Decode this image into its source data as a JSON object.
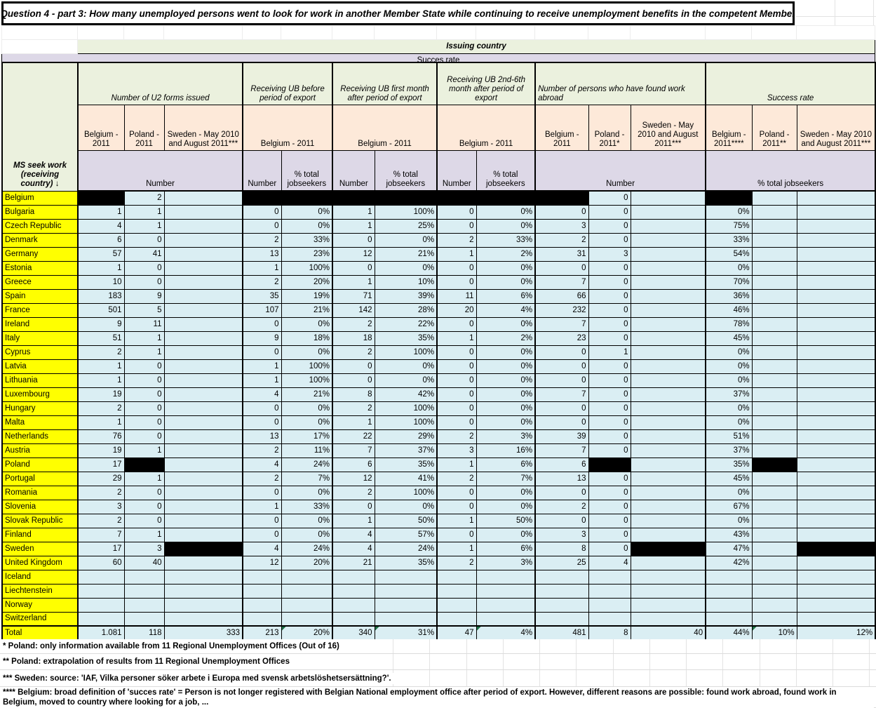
{
  "title": "Question 4 - part 3: How many unemployed persons went to look for work in another Member State while continuing to receive unemployment benefits in the competent Member",
  "top_banner": {
    "issuing_country": "Issuing country",
    "succes_rate": "Succes rate"
  },
  "table": {
    "corner_label": "MS seek work (receiving country) ↓",
    "group_headers": [
      "Number of U2 forms issued",
      "Receiving UB before period of export",
      "Receiving UB first month after period of export",
      "Receiving UB 2nd-6th month after period of export",
      "Number of persons who have found work abroad",
      "Success rate"
    ],
    "col_headers": {
      "u2_belgium": "Belgium - 2011",
      "u2_poland": "Poland - 2011",
      "u2_sweden": "Sweden - May 2010 and August 2011***",
      "ub_before_belgium": "Belgium  - 2011",
      "ub_first_belgium": "Belgium  - 2011",
      "ub_2nd6th_belgium": "Belgium  - 2011",
      "fw_belgium": "Belgium - 2011",
      "fw_poland": "Poland - 2011*",
      "fw_sweden": "Sweden - May 2010 and August 2011***",
      "sr_belgium": "Belgium - 2011****",
      "sr_poland": "Poland - 2011**",
      "sr_sweden": "Sweden - May 2010 and August 2011***"
    },
    "measure_headers": {
      "u2": "Number",
      "ub_before_n": "Number",
      "ub_before_pct": "% total jobseekers",
      "ub_first_n": "Number",
      "ub_first_pct": "% total jobseekers",
      "ub_2nd6th_n": "Number",
      "ub_2nd6th_pct": "% total jobseekers",
      "fw": "Number",
      "sr": "% total jobseekers"
    },
    "redacted_marker": "█",
    "rows": [
      {
        "country": "Belgium",
        "cells": [
          "█",
          "2",
          "",
          "█",
          "█",
          "█",
          "█",
          "█",
          "█",
          "█",
          "0",
          "",
          "█",
          "",
          ""
        ]
      },
      {
        "country": "Bulgaria",
        "cells": [
          "1",
          "1",
          "",
          "0",
          "0%",
          "1",
          "100%",
          "0",
          "0%",
          "0",
          "0",
          "",
          "0%",
          "",
          ""
        ]
      },
      {
        "country": "Czech Republic",
        "cells": [
          "4",
          "1",
          "",
          "0",
          "0%",
          "1",
          "25%",
          "0",
          "0%",
          "3",
          "0",
          "",
          "75%",
          "",
          ""
        ]
      },
      {
        "country": "Denmark",
        "cells": [
          "6",
          "0",
          "",
          "2",
          "33%",
          "0",
          "0%",
          "2",
          "33%",
          "2",
          "0",
          "",
          "33%",
          "",
          ""
        ]
      },
      {
        "country": "Germany",
        "cells": [
          "57",
          "41",
          "",
          "13",
          "23%",
          "12",
          "21%",
          "1",
          "2%",
          "31",
          "3",
          "",
          "54%",
          "",
          ""
        ]
      },
      {
        "country": "Estonia",
        "cells": [
          "1",
          "0",
          "",
          "1",
          "100%",
          "0",
          "0%",
          "0",
          "0%",
          "0",
          "0",
          "",
          "0%",
          "",
          ""
        ]
      },
      {
        "country": "Greece",
        "cells": [
          "10",
          "0",
          "",
          "2",
          "20%",
          "1",
          "10%",
          "0",
          "0%",
          "7",
          "0",
          "",
          "70%",
          "",
          ""
        ]
      },
      {
        "country": "Spain",
        "cells": [
          "183",
          "9",
          "",
          "35",
          "19%",
          "71",
          "39%",
          "11",
          "6%",
          "66",
          "0",
          "",
          "36%",
          "",
          ""
        ]
      },
      {
        "country": "France",
        "cells": [
          "501",
          "5",
          "",
          "107",
          "21%",
          "142",
          "28%",
          "20",
          "4%",
          "232",
          "0",
          "",
          "46%",
          "",
          ""
        ]
      },
      {
        "country": "Ireland",
        "cells": [
          "9",
          "11",
          "",
          "0",
          "0%",
          "2",
          "22%",
          "0",
          "0%",
          "7",
          "0",
          "",
          "78%",
          "",
          ""
        ]
      },
      {
        "country": "Italy",
        "cells": [
          "51",
          "1",
          "",
          "9",
          "18%",
          "18",
          "35%",
          "1",
          "2%",
          "23",
          "0",
          "",
          "45%",
          "",
          ""
        ]
      },
      {
        "country": "Cyprus",
        "cells": [
          "2",
          "1",
          "",
          "0",
          "0%",
          "2",
          "100%",
          "0",
          "0%",
          "0",
          "1",
          "",
          "0%",
          "",
          ""
        ]
      },
      {
        "country": "Latvia",
        "cells": [
          "1",
          "0",
          "",
          "1",
          "100%",
          "0",
          "0%",
          "0",
          "0%",
          "0",
          "0",
          "",
          "0%",
          "",
          ""
        ]
      },
      {
        "country": "Lithuania",
        "cells": [
          "1",
          "0",
          "",
          "1",
          "100%",
          "0",
          "0%",
          "0",
          "0%",
          "0",
          "0",
          "",
          "0%",
          "",
          ""
        ]
      },
      {
        "country": "Luxembourg",
        "cells": [
          "19",
          "0",
          "",
          "4",
          "21%",
          "8",
          "42%",
          "0",
          "0%",
          "7",
          "0",
          "",
          "37%",
          "",
          ""
        ]
      },
      {
        "country": "Hungary",
        "cells": [
          "2",
          "0",
          "",
          "0",
          "0%",
          "2",
          "100%",
          "0",
          "0%",
          "0",
          "0",
          "",
          "0%",
          "",
          ""
        ]
      },
      {
        "country": "Malta",
        "cells": [
          "1",
          "0",
          "",
          "0",
          "0%",
          "1",
          "100%",
          "0",
          "0%",
          "0",
          "0",
          "",
          "0%",
          "",
          ""
        ]
      },
      {
        "country": "Netherlands",
        "cells": [
          "76",
          "0",
          "",
          "13",
          "17%",
          "22",
          "29%",
          "2",
          "3%",
          "39",
          "0",
          "",
          "51%",
          "",
          ""
        ]
      },
      {
        "country": "Austria",
        "cells": [
          "19",
          "1",
          "",
          "2",
          "11%",
          "7",
          "37%",
          "3",
          "16%",
          "7",
          "0",
          "",
          "37%",
          "",
          ""
        ]
      },
      {
        "country": "Poland",
        "cells": [
          "17",
          "█",
          "",
          "4",
          "24%",
          "6",
          "35%",
          "1",
          "6%",
          "6",
          "█",
          "",
          "35%",
          "█",
          ""
        ]
      },
      {
        "country": "Portugal",
        "cells": [
          "29",
          "1",
          "",
          "2",
          "7%",
          "12",
          "41%",
          "2",
          "7%",
          "13",
          "0",
          "",
          "45%",
          "",
          ""
        ]
      },
      {
        "country": "Romania",
        "cells": [
          "2",
          "0",
          "",
          "0",
          "0%",
          "2",
          "100%",
          "0",
          "0%",
          "0",
          "0",
          "",
          "0%",
          "",
          ""
        ]
      },
      {
        "country": "Slovenia",
        "cells": [
          "3",
          "0",
          "",
          "1",
          "33%",
          "0",
          "0%",
          "0",
          "0%",
          "2",
          "0",
          "",
          "67%",
          "",
          ""
        ]
      },
      {
        "country": "Slovak Republic",
        "cells": [
          "2",
          "0",
          "",
          "0",
          "0%",
          "1",
          "50%",
          "1",
          "50%",
          "0",
          "0",
          "",
          "0%",
          "",
          ""
        ]
      },
      {
        "country": "Finland",
        "cells": [
          "7",
          "1",
          "",
          "0",
          "0%",
          "4",
          "57%",
          "0",
          "0%",
          "3",
          "0",
          "",
          "43%",
          "",
          ""
        ]
      },
      {
        "country": "Sweden",
        "cells": [
          "17",
          "3",
          "█",
          "4",
          "24%",
          "4",
          "24%",
          "1",
          "6%",
          "8",
          "0",
          "█",
          "47%",
          "",
          "█"
        ]
      },
      {
        "country": "United Kingdom",
        "cells": [
          "60",
          "40",
          "",
          "12",
          "20%",
          "21",
          "35%",
          "2",
          "3%",
          "25",
          "4",
          "",
          "42%",
          "",
          ""
        ]
      },
      {
        "country": "Iceland",
        "cells": [
          "",
          "",
          "",
          "",
          "",
          "",
          "",
          "",
          "",
          "",
          "",
          "",
          "",
          "",
          ""
        ]
      },
      {
        "country": "Liechtenstein",
        "cells": [
          "",
          "",
          "",
          "",
          "",
          "",
          "",
          "",
          "",
          "",
          "",
          "",
          "",
          "",
          ""
        ]
      },
      {
        "country": "Norway",
        "cells": [
          "",
          "",
          "",
          "",
          "",
          "",
          "",
          "",
          "",
          "",
          "",
          "",
          "",
          "",
          ""
        ]
      },
      {
        "country": "Switzerland",
        "cells": [
          "",
          "",
          "",
          "",
          "",
          "",
          "",
          "",
          "",
          "",
          "",
          "",
          "",
          "",
          ""
        ]
      }
    ],
    "total": {
      "label": "Total",
      "cells": [
        "1.081",
        "118",
        "333",
        "213",
        "20%",
        "340",
        "31%",
        "47",
        "4%",
        "481",
        "8",
        "40",
        "44%",
        "10%",
        "12%"
      ],
      "flags": [
        4,
        6,
        8,
        13
      ]
    }
  },
  "footnotes": [
    "* Poland: only information available from 11 Regional Unemployment Offices (Out of 16)",
    "** Poland: extrapolation of results from 11 Regional Unemployment Offices",
    "*** Sweden: source: 'IAF, Vilka personer söker arbete i Europa med svensk arbetslöshetsersättning?'.",
    "**** Belgium: broad definition of 'succes rate' = Person is not longer registered with Belgian National employment office after period of export. However, different reasons are possible: found work abroad, found work in Belgium, moved to country where looking for a job, ..."
  ],
  "colors": {
    "group_header_green": "#EBF1DE",
    "sub_header_peach": "#FDE9D9",
    "measure_header_lavender": "#DDD8E7",
    "data_cell_blue": "#DAEEF3",
    "label_yellow": "#FFFF00",
    "redaction_black": "#000000",
    "error_flag_green": "#1F7145"
  }
}
